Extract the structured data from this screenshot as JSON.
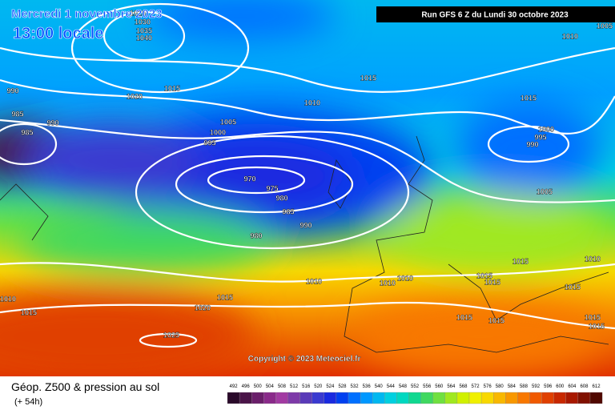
{
  "header": {
    "date": "Mercredi 1 novembre 2023",
    "time": "13:00 locale",
    "run": "Run GFS 6 Z du Lundi 30 octobre 2023"
  },
  "copyright": "Copyright © 2023 Meteociel.fr",
  "legend": {
    "title": "Géop. Z500 & pression au sol",
    "lead": "(+ 54h)"
  },
  "isobar_labels": [
    1025,
    1030,
    1035,
    1040,
    1010,
    1005,
    990,
    985,
    985,
    990,
    1020,
    1015,
    1015,
    1010,
    1015,
    1005,
    1000,
    995,
    1000,
    995,
    990,
    970,
    975,
    980,
    985,
    990,
    980,
    1005,
    1015,
    1010,
    1010,
    1010,
    1010,
    1015,
    1015,
    1015,
    1010,
    1015,
    1015,
    1020,
    1025,
    1015,
    1015,
    1015,
    1015
  ],
  "scale": {
    "values": [
      492,
      496,
      500,
      504,
      508,
      512,
      516,
      520,
      524,
      528,
      532,
      536,
      540,
      544,
      548,
      552,
      556,
      560,
      564,
      568,
      572,
      576,
      580,
      584,
      588,
      592,
      596,
      600,
      604,
      608,
      612
    ],
    "colors": [
      "#2a0a2a",
      "#4a1448",
      "#6a1e6a",
      "#8a2a8a",
      "#a23aa2",
      "#7e3aa8",
      "#5a3ab8",
      "#3a3ad0",
      "#1a2ae0",
      "#0040f0",
      "#0070ff",
      "#0098ff",
      "#00b8f0",
      "#00d0e0",
      "#00d8c0",
      "#10d890",
      "#40d860",
      "#70e040",
      "#a0e820",
      "#d0f000",
      "#f0f000",
      "#f8d800",
      "#f8b800",
      "#f89800",
      "#f87800",
      "#f05a00",
      "#e04000",
      "#c82800",
      "#a81800",
      "#801000",
      "#500800"
    ]
  }
}
